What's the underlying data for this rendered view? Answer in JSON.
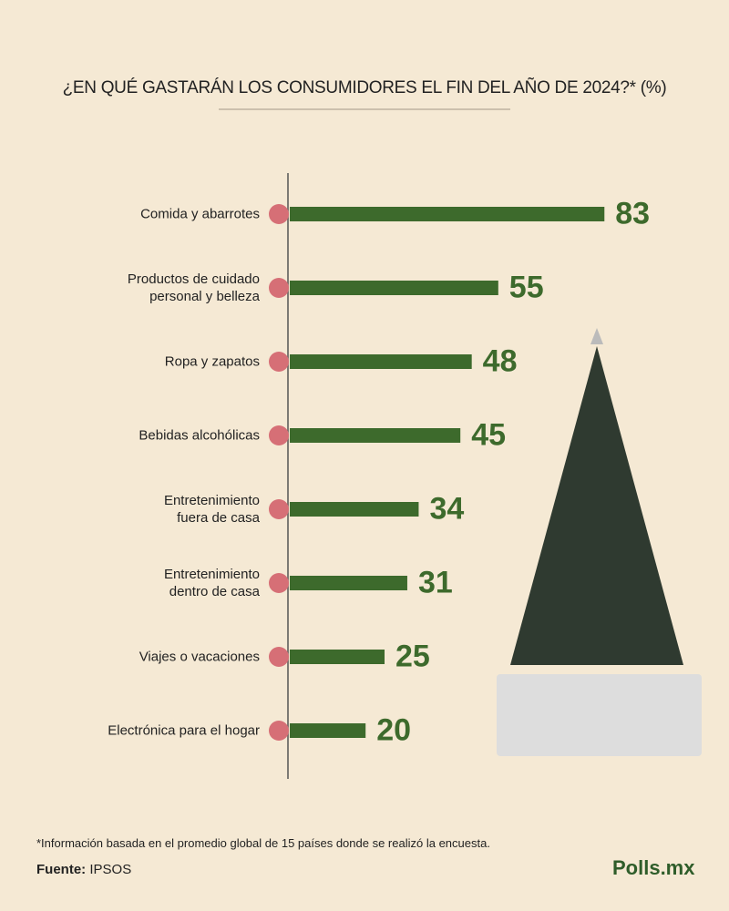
{
  "chart_data": {
    "type": "bar",
    "title": "¿EN QUÉ GASTARÁN LOS CONSUMIDORES EL FIN DEL AÑO DE 2024?* (%)",
    "categories": [
      "Comida y abarrotes",
      "Productos de cuidado\npersonal y belleza",
      "Ropa y zapatos",
      "Bebidas alcohólicas",
      "Entretenimiento\nfuera de casa",
      "Entretenimiento\ndentro de casa",
      "Viajes o vacaciones",
      "Electrónica para el hogar"
    ],
    "values": [
      83,
      55,
      48,
      45,
      34,
      31,
      25,
      20
    ],
    "color": "#3d6a2c",
    "footnote": "*Información basada en el promedio global de 15 países donde se realizó la encuesta.",
    "source_label": "Fuente:",
    "source": "IPSOS",
    "logo": "Polls.mx"
  }
}
